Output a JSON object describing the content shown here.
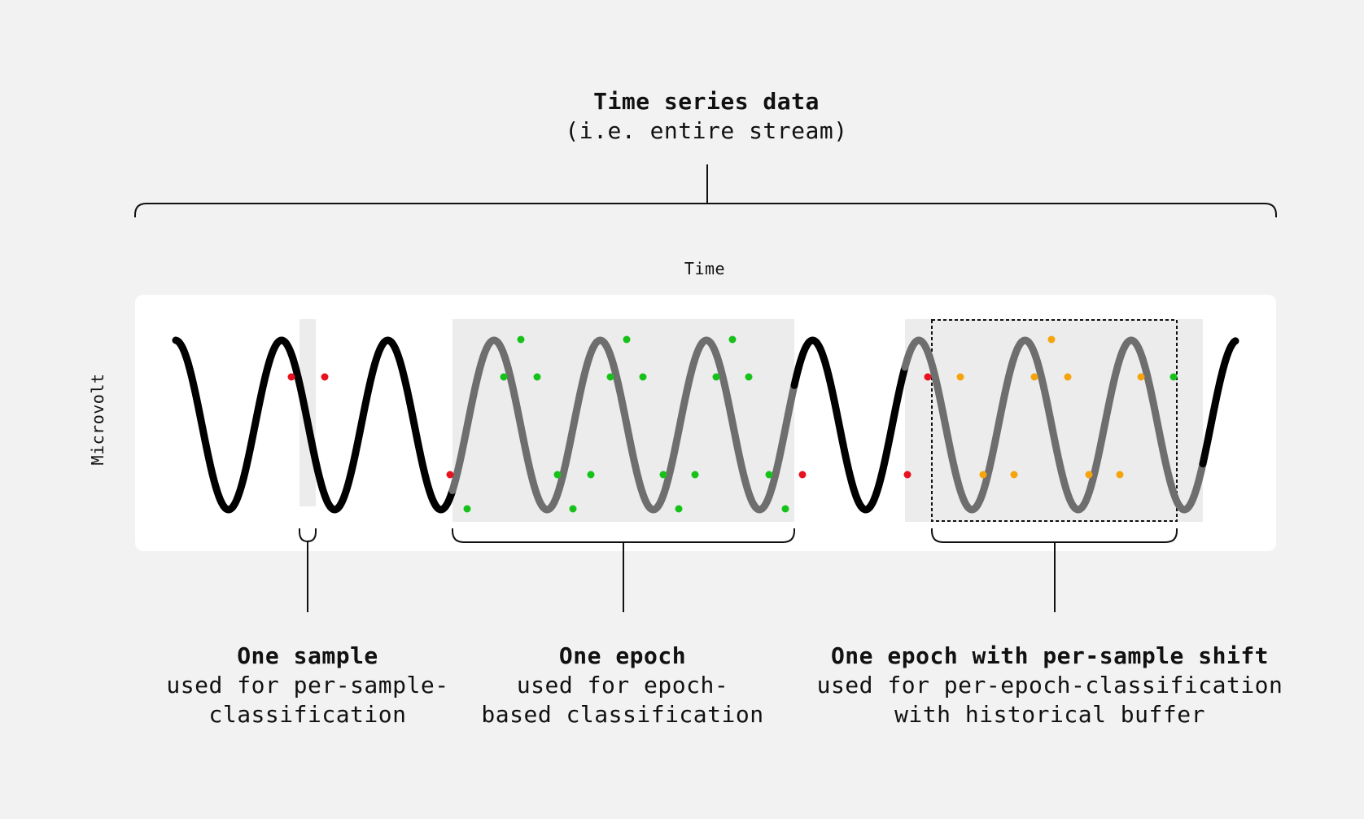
{
  "header": {
    "title": "Time series data",
    "subtitle": "(i.e. entire stream)"
  },
  "axes": {
    "x_label": "Time",
    "y_label": "Microvolt"
  },
  "captions": {
    "sample": {
      "title": "One sample",
      "body": "used for per-sample-\nclassification"
    },
    "epoch": {
      "title": "One epoch",
      "body": "used for epoch-\nbased classification"
    },
    "shift": {
      "title": "One epoch with per-sample shift",
      "body": "used for per-epoch-classification\nwith historical buffer"
    }
  },
  "colors": {
    "background": "#f2f2f2",
    "panel": "#ffffff",
    "window_fill": "#ececec",
    "signal": "#000000",
    "signal_in_window": "#6e6e6e",
    "marker_red": "#e8121e",
    "marker_green": "#16c21a",
    "marker_orange": "#f5a40d",
    "line": "#111111"
  },
  "icons": {
    "windows": "shaded-rectangle",
    "markers": "dot"
  }
}
